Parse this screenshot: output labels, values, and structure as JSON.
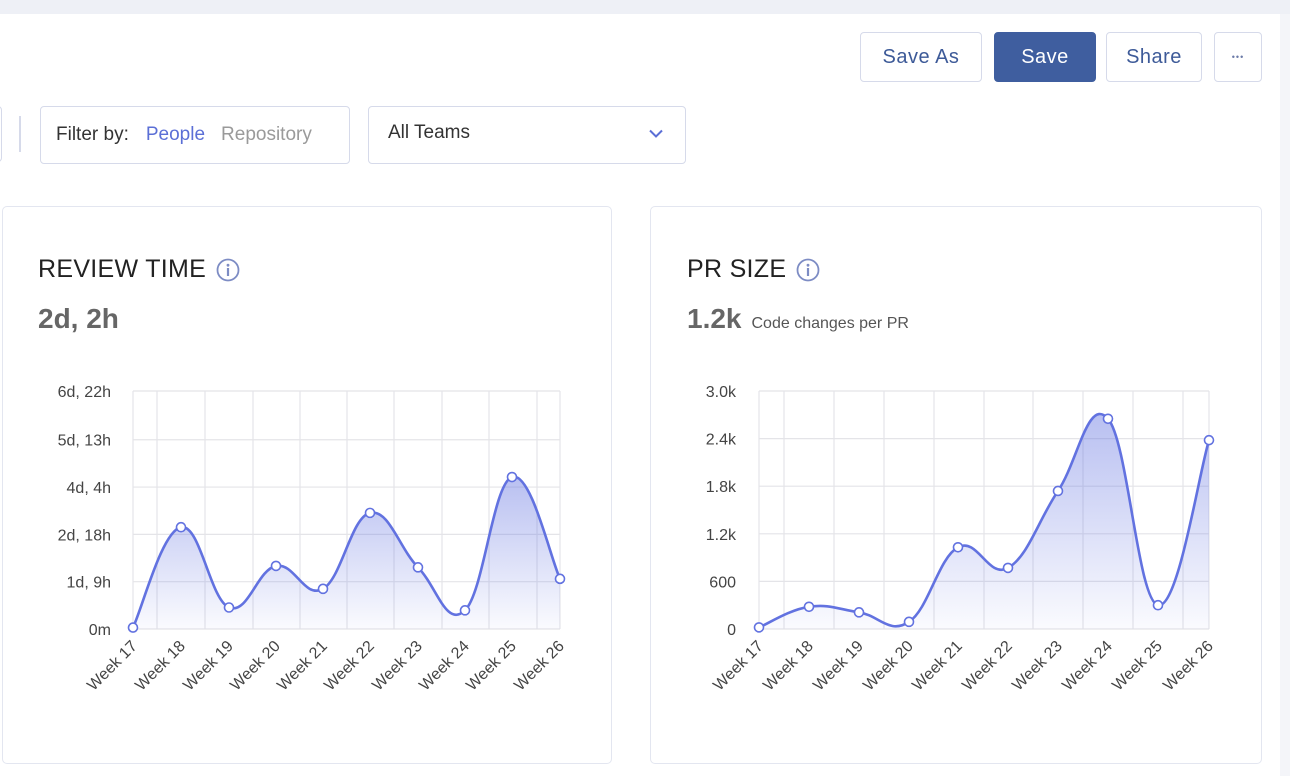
{
  "toolbar": {
    "save_as_label": "Save As",
    "save_label": "Save",
    "share_label": "Share",
    "more_label": "•••"
  },
  "filter": {
    "label": "Filter by:",
    "options": [
      "People",
      "Repository"
    ],
    "active": "People"
  },
  "team_select": {
    "value": "All Teams"
  },
  "colors": {
    "accent": "#5b6fd6",
    "primary_button": "#3f5e9f",
    "line": "#6272e0"
  },
  "cards": [
    {
      "title": "REVIEW TIME",
      "value": "2d, 2h",
      "subtitle": ""
    },
    {
      "title": "PR SIZE",
      "value": "1.2k",
      "subtitle": "Code changes per PR"
    }
  ],
  "chart_data": [
    {
      "type": "area",
      "categories": [
        "Week 17",
        "Week 18",
        "Week 19",
        "Week 20",
        "Week 21",
        "Week 22",
        "Week 23",
        "Week 24",
        "Week 25",
        "Week 26"
      ],
      "y_unit": "hours",
      "values": [
        1,
        71,
        15,
        44,
        28,
        81,
        43,
        13,
        106,
        35
      ],
      "ytick_values": [
        0,
        33,
        66,
        99,
        132,
        166
      ],
      "ytick_labels": [
        "0m",
        "1d, 9h",
        "2d, 18h",
        "4d, 4h",
        "5d, 13h",
        "6d, 22h"
      ],
      "ylim": [
        0,
        166
      ],
      "grid": true
    },
    {
      "type": "area",
      "categories": [
        "Week 17",
        "Week 18",
        "Week 19",
        "Week 20",
        "Week 21",
        "Week 22",
        "Week 23",
        "Week 24",
        "Week 25",
        "Week 26"
      ],
      "values": [
        20,
        280,
        210,
        90,
        1030,
        770,
        1740,
        2650,
        300,
        2380
      ],
      "ytick_values": [
        0,
        600,
        1200,
        1800,
        2400,
        3000
      ],
      "ytick_labels": [
        "0",
        "600",
        "1.2k",
        "1.8k",
        "2.4k",
        "3.0k"
      ],
      "ylim": [
        0,
        3000
      ],
      "grid": true
    }
  ]
}
